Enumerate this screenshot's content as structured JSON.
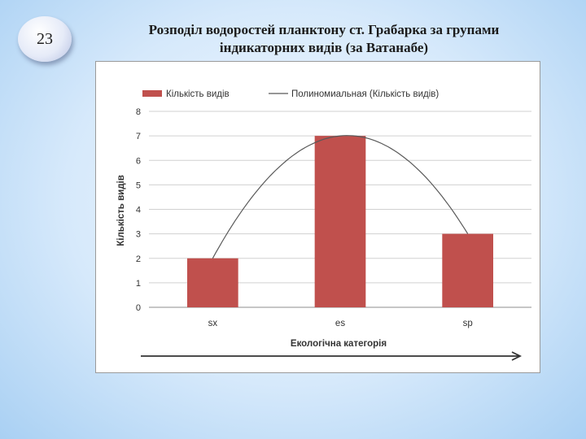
{
  "slide": {
    "number": "23",
    "title_line1": "Розподіл водоростей планктону ст. Грабарка за групами",
    "title_line2": "індикаторних видів (за Ватанабе)"
  },
  "chart_data": {
    "type": "bar",
    "categories": [
      "sx",
      "es",
      "sp"
    ],
    "series": [
      {
        "name": "Кількість видів",
        "values": [
          2,
          7,
          3
        ],
        "color": "#c0504d"
      }
    ],
    "trendline": {
      "name": "Полиномиальная (Кількість видів)",
      "order": 2,
      "color": "#595959"
    },
    "title": "",
    "xlabel": "Екологічна категорія",
    "ylabel": "Кількість видів",
    "ylim": [
      0,
      8
    ],
    "yticks": [
      0,
      1,
      2,
      3,
      4,
      5,
      6,
      7,
      8
    ],
    "grid": true,
    "legend_position": "top"
  }
}
